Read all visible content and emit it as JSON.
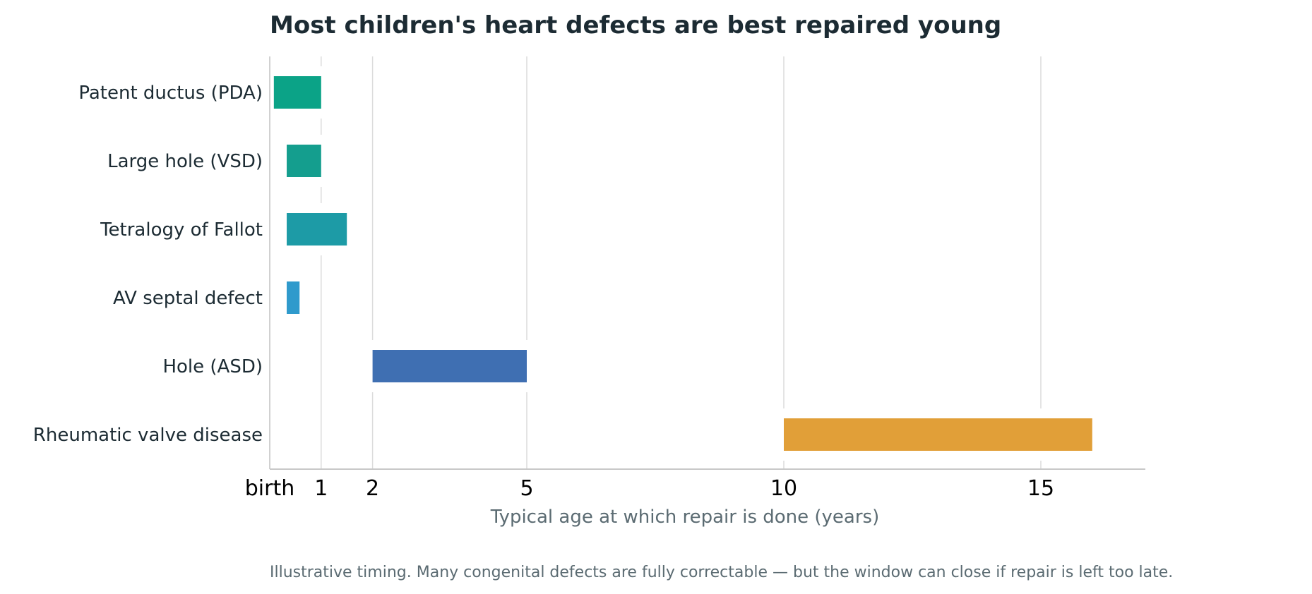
{
  "chart_data": {
    "type": "bar",
    "orientation": "horizontal-range",
    "title": "Most children's heart defects are best repaired young",
    "xlabel": "Typical age at which repair is done (years)",
    "ylabel": "",
    "xlim": [
      0,
      17
    ],
    "xticks": [
      {
        "value": 0,
        "label": "birth"
      },
      {
        "value": 1,
        "label": "1"
      },
      {
        "value": 2,
        "label": "2"
      },
      {
        "value": 5,
        "label": "5"
      },
      {
        "value": 10,
        "label": "10"
      },
      {
        "value": 15,
        "label": "15"
      }
    ],
    "grid": "vertical",
    "categories": [
      "Patent ductus (PDA)",
      "Large hole (VSD)",
      "Tetralogy of Fallot",
      "AV septal defect",
      "Hole (ASD)",
      "Rheumatic valve disease"
    ],
    "ranges": [
      {
        "start": 0.08,
        "end": 1.0,
        "color": "#0ba387"
      },
      {
        "start": 0.33,
        "end": 1.0,
        "color": "#149e8e"
      },
      {
        "start": 0.33,
        "end": 1.5,
        "color": "#1d9ba6"
      },
      {
        "start": 0.33,
        "end": 0.58,
        "color": "#2f9acc"
      },
      {
        "start": 2.0,
        "end": 5.0,
        "color": "#3f6fb2"
      },
      {
        "start": 10.0,
        "end": 16.0,
        "color": "#e19f38"
      }
    ],
    "note": "Illustrative timing. Many congenital defects are fully correctable — but the window can close if repair is left too late."
  },
  "colors": {
    "title": "#1c2b33",
    "category_label": "#1c2b33",
    "tick_label": "#000000",
    "axis_title": "#5b6b72",
    "note": "#5b6b72",
    "grid": "#dcdcdc",
    "axis": "#c8c8c8"
  }
}
